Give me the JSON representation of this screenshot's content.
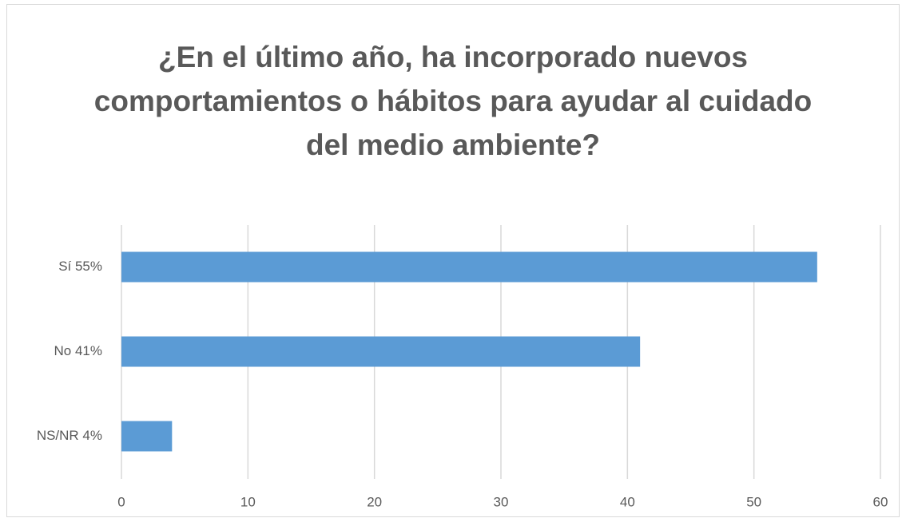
{
  "chart_data": {
    "type": "bar",
    "orientation": "horizontal",
    "title": "¿En el último año, ha incorporado nuevos comportamientos o hábitos para ayudar al cuidado del medio ambiente?",
    "categories": [
      "Sí 55%",
      "No 41%",
      "NS/NR 4%"
    ],
    "values": [
      55,
      41,
      4
    ],
    "color": "#5b9bd5",
    "xlim": [
      0,
      60
    ],
    "xticks": [
      0,
      10,
      20,
      30,
      40,
      50,
      60
    ],
    "grid": true
  }
}
